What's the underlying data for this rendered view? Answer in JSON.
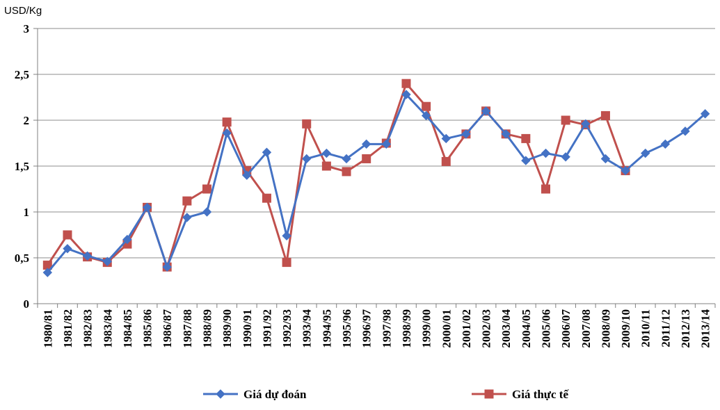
{
  "chart_data": {
    "type": "line",
    "ylabel": "USD/Kg",
    "ylim": [
      0,
      3
    ],
    "yticks": [
      0,
      0.5,
      1,
      1.5,
      2,
      2.5,
      3
    ],
    "ytick_labels": [
      "0",
      "0,5",
      "1",
      "1,5",
      "2",
      "2,5",
      "3"
    ],
    "grid": true,
    "legend_position": "bottom",
    "categories": [
      "1980/81",
      "1981/82",
      "1982/83",
      "1983/84",
      "1984/85",
      "1985/86",
      "1986/87",
      "1987/88",
      "1988/89",
      "1989/90",
      "1990/91",
      "1991/92",
      "1992/93",
      "1993/94",
      "1994/95",
      "1995/96",
      "1996/97",
      "1997/98",
      "1998/99",
      "1999/00",
      "2000/01",
      "2001/02",
      "2002/03",
      "2003/04",
      "2004/05",
      "2005/06",
      "2006/07",
      "2007/08",
      "2008/09",
      "2009/10",
      "2010/11",
      "2011/12",
      "2012/13",
      "2013/14"
    ],
    "series": [
      {
        "name": "Giá dự đoán",
        "color": "#4472C4",
        "marker": "diamond",
        "values": [
          0.34,
          0.6,
          0.52,
          0.46,
          0.7,
          1.05,
          0.4,
          0.94,
          1.0,
          1.86,
          1.4,
          1.65,
          0.74,
          1.58,
          1.64,
          1.58,
          1.74,
          1.74,
          2.28,
          2.05,
          1.8,
          1.85,
          2.1,
          1.85,
          1.56,
          1.64,
          1.6,
          1.96,
          1.58,
          1.45,
          1.64,
          1.74,
          1.88,
          2.07
        ]
      },
      {
        "name": "Giá thực tế",
        "color": "#C0504D",
        "marker": "square",
        "values": [
          0.42,
          0.75,
          0.51,
          0.45,
          0.65,
          1.05,
          0.4,
          1.12,
          1.25,
          1.98,
          1.45,
          1.15,
          0.45,
          1.96,
          1.5,
          1.44,
          1.58,
          1.75,
          2.4,
          2.15,
          1.55,
          1.85,
          2.1,
          1.85,
          1.8,
          1.25,
          2.0,
          1.95,
          2.05,
          1.45,
          null,
          null,
          null,
          null
        ]
      }
    ]
  }
}
